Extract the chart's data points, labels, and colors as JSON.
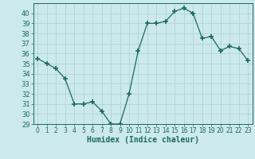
{
  "x": [
    0,
    1,
    2,
    3,
    4,
    5,
    6,
    7,
    8,
    9,
    10,
    11,
    12,
    13,
    14,
    15,
    16,
    17,
    18,
    19,
    20,
    21,
    22,
    23
  ],
  "y": [
    35.5,
    35.0,
    34.5,
    33.5,
    31.0,
    31.0,
    31.2,
    30.3,
    29.0,
    29.0,
    32.0,
    36.3,
    39.0,
    39.0,
    39.2,
    40.2,
    40.5,
    40.0,
    37.5,
    37.7,
    36.3,
    36.7,
    36.5,
    35.3
  ],
  "line_color": "#1a6b5a",
  "marker": "+",
  "marker_size": 4,
  "marker_linewidth": 1.2,
  "bg_color": "#cce9eb",
  "grid_color": "#b0d5d8",
  "xlabel": "Humidex (Indice chaleur)",
  "xlabel_fontsize": 7,
  "tick_fontsize": 6,
  "ylim": [
    29,
    41
  ],
  "xlim": [
    -0.5,
    23.5
  ],
  "yticks": [
    29,
    30,
    31,
    32,
    33,
    34,
    35,
    36,
    37,
    38,
    39,
    40
  ],
  "xticks": [
    0,
    1,
    2,
    3,
    4,
    5,
    6,
    7,
    8,
    9,
    10,
    11,
    12,
    13,
    14,
    15,
    16,
    17,
    18,
    19,
    20,
    21,
    22,
    23
  ]
}
